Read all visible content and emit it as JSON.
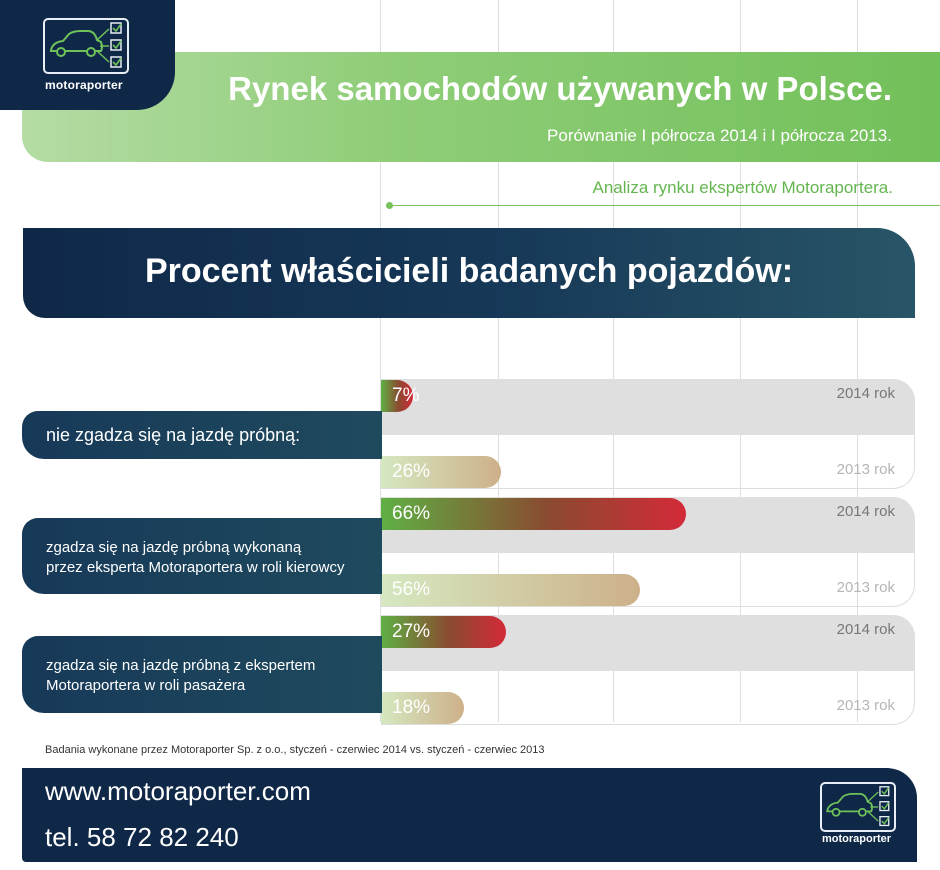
{
  "brand": {
    "name": "motoraporter"
  },
  "header": {
    "title": "Rynek samochodów używanych w Polsce.",
    "subtitle": "Porównanie I półrocza 2014 i I półrocza 2013.",
    "analysis": "Analiza rynku ekspertów Motoraportera."
  },
  "section": {
    "title": "Procent właścicieli badanych pojazdów:"
  },
  "colors": {
    "navy": "#0f2848",
    "green": "#72c05a",
    "bar_2014_start": "#5fb044",
    "bar_2014_end": "#d42a39",
    "bar_2013_start": "#d5e8c0",
    "bar_2013_end": "#cdb08a"
  },
  "chart_data": {
    "type": "bar",
    "orientation": "horizontal",
    "categories": [
      "nie zgadza się na jazdę próbną:",
      "zgadza się na jazdę próbną wykonaną przez eksperta Motoraportera w roli kierowcy",
      "zgadza się na jazdę próbną z ekspertem Motoraportera w roli pasażera"
    ],
    "category_lines": [
      [
        "nie zgadza się na jazdę próbną:"
      ],
      [
        "zgadza się na jazdę próbną wykonaną",
        "przez eksperta Motoraportera w roli kierowcy"
      ],
      [
        "zgadza się na jazdę próbną z ekspertem",
        "Motoraportera w roli pasażera"
      ]
    ],
    "series": [
      {
        "name": "2014 rok",
        "values": [
          7,
          66,
          27
        ],
        "labels": [
          "7%",
          "66%",
          "27%"
        ]
      },
      {
        "name": "2013 rok",
        "values": [
          26,
          56,
          18
        ],
        "labels": [
          "26%",
          "56%",
          "18%"
        ]
      }
    ],
    "unit": "%",
    "xlim": [
      0,
      100
    ]
  },
  "note": "Badania wykonane przez Motoraporter Sp. z o.o., styczeń - czerwiec 2014 vs. styczeń - czerwiec 2013",
  "footer": {
    "url": "www.motoraporter.com",
    "tel": "tel. 58 72 82 240"
  }
}
